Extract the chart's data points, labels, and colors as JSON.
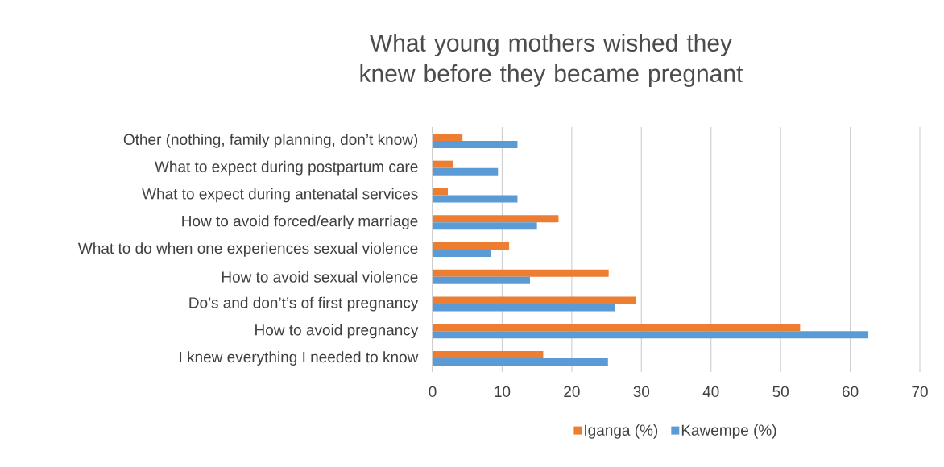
{
  "chart_data": {
    "type": "bar",
    "orientation": "horizontal",
    "title": "What young mothers wished they knew before they became pregnant",
    "categories": [
      "Other (nothing, family planning, don’t know)",
      "What to expect during postpartum care",
      "What to expect during antenatal services",
      "How to avoid forced/early marriage",
      "What to do when one experiences sexual violence",
      "How to avoid sexual violence",
      "Do’s and don’t’s of first pregnancy",
      "How to avoid pregnancy",
      "I knew everything I needed to know"
    ],
    "series": [
      {
        "name": "Iganga (%)",
        "color": "#ed7d31",
        "values": [
          4.3,
          3.0,
          2.2,
          18.1,
          11.0,
          25.3,
          29.2,
          52.8,
          15.9
        ]
      },
      {
        "name": "Kawempe (%)",
        "color": "#5b9bd5",
        "values": [
          12.2,
          9.4,
          12.2,
          15.0,
          8.4,
          14.0,
          26.2,
          62.6,
          25.2
        ]
      }
    ],
    "xlim": [
      0,
      70
    ],
    "xticks": [
      0,
      10,
      20,
      30,
      40,
      50,
      60,
      70
    ],
    "grid": "x",
    "legend": "bottom"
  }
}
